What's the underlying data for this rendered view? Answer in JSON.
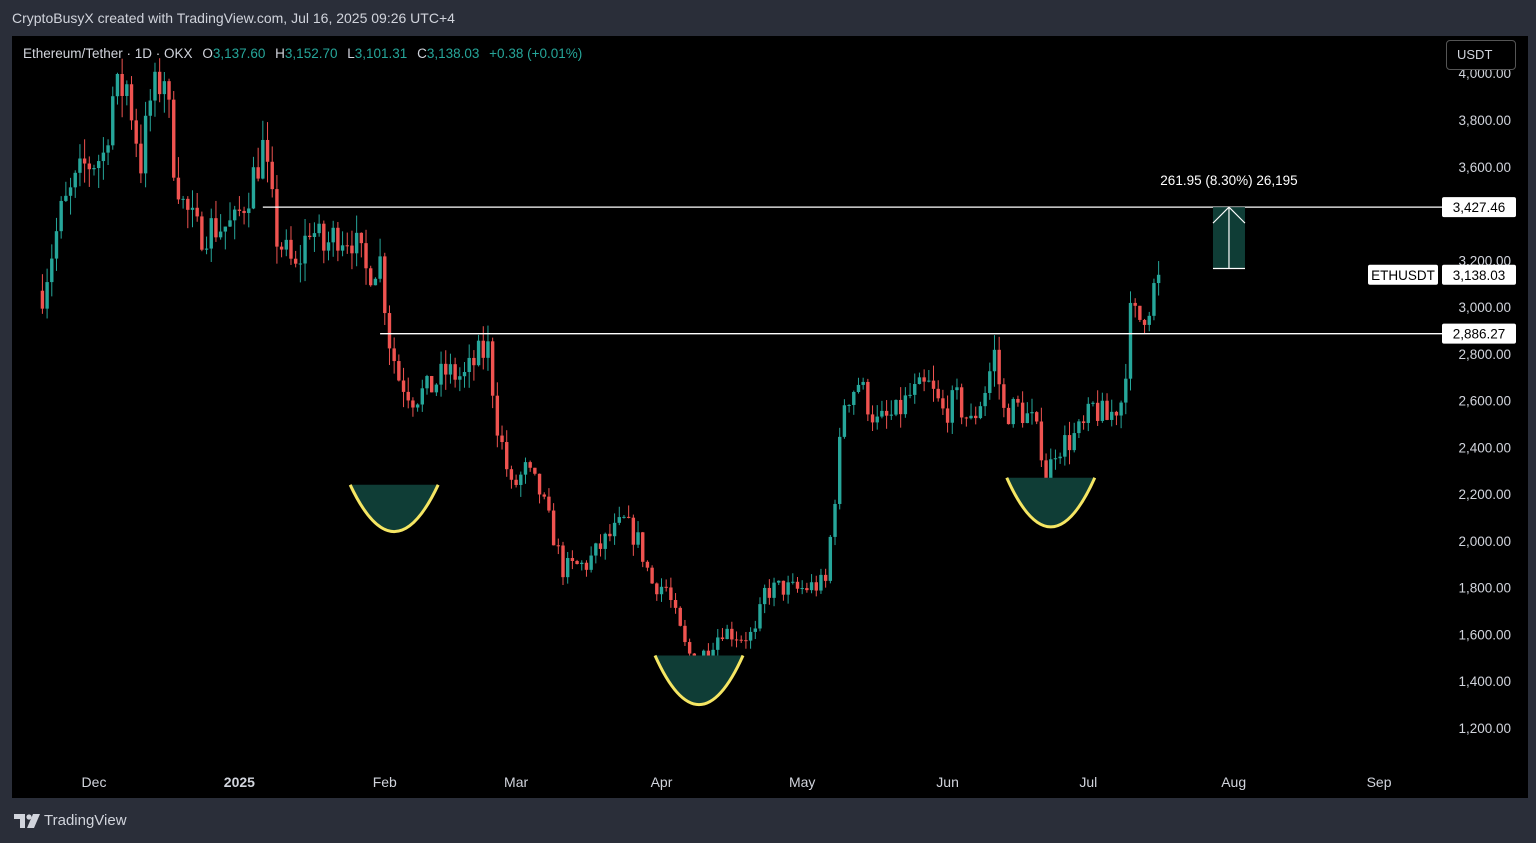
{
  "header": {
    "credit": "CryptoBusyX created with TradingView.com, Jul 16, 2025 09:26 UTC+4"
  },
  "legend": {
    "title": "Ethereum/Tether · 1D · OKX",
    "o_label": "O",
    "o_value": "3,137.60",
    "h_label": "H",
    "h_value": "3,152.70",
    "l_label": "L",
    "l_value": "3,101.31",
    "c_label": "C",
    "c_value": "3,138.03",
    "change": "+0.38 (+0.01%)"
  },
  "currency_button": "USDT",
  "measure_label": "261.95 (8.30%) 26,195",
  "symbol_tag": "ETHUSDT",
  "price_tags": {
    "last": "3,138.03",
    "resistance": "3,427.46",
    "breakout": "2,886.27"
  },
  "footer": {
    "brand": "TradingView"
  },
  "colors": {
    "up": "#26a69a",
    "down": "#ef5350",
    "background": "#000000",
    "frame": "#2a2e39",
    "highlight": "#f5e663",
    "zone": "#0f3d36"
  },
  "chart_data": {
    "type": "candlestick",
    "symbol": "ETHUSDT",
    "interval": "1D",
    "yticks": [
      "4,000.00",
      "3,800.00",
      "3,600.00",
      "3,200.00",
      "3,000.00",
      "2,800.00",
      "2,600.00",
      "2,400.00",
      "2,200.00",
      "2,000.00",
      "1,800.00",
      "1,600.00",
      "1,400.00",
      "1,200.00"
    ],
    "ytick_values": [
      4000,
      3800,
      3600,
      3200,
      3000,
      2800,
      2600,
      2400,
      2200,
      2000,
      1800,
      1600,
      1400,
      1200
    ],
    "xticks": [
      {
        "label": "Dec",
        "date": "2024-12-01",
        "bold": false
      },
      {
        "label": "2025",
        "date": "2025-01-01",
        "bold": true
      },
      {
        "label": "Feb",
        "date": "2025-02-01",
        "bold": false
      },
      {
        "label": "Mar",
        "date": "2025-03-01",
        "bold": false
      },
      {
        "label": "Apr",
        "date": "2025-04-01",
        "bold": false
      },
      {
        "label": "May",
        "date": "2025-05-01",
        "bold": false
      },
      {
        "label": "Jun",
        "date": "2025-06-01",
        "bold": false
      },
      {
        "label": "Jul",
        "date": "2025-07-01",
        "bold": false
      },
      {
        "label": "Aug",
        "date": "2025-08-01",
        "bold": false
      },
      {
        "label": "Sep",
        "date": "2025-09-01",
        "bold": false
      }
    ],
    "start_date": "2024-11-20",
    "end_date": "2025-07-16",
    "close_path": [
      [
        "2024-11-20",
        3070
      ],
      [
        "2024-11-24",
        3400
      ],
      [
        "2024-11-29",
        3600
      ],
      [
        "2024-12-03",
        3650
      ],
      [
        "2024-12-05",
        3900
      ],
      [
        "2024-12-08",
        3950
      ],
      [
        "2024-12-11",
        3620
      ],
      [
        "2024-12-13",
        3880
      ],
      [
        "2024-12-16",
        4000
      ],
      [
        "2024-12-18",
        3630
      ],
      [
        "2024-12-20",
        3440
      ],
      [
        "2024-12-23",
        3320
      ],
      [
        "2024-12-26",
        3340
      ],
      [
        "2024-12-31",
        3350
      ],
      [
        "2025-01-03",
        3500
      ],
      [
        "2025-01-06",
        3680
      ],
      [
        "2025-01-09",
        3300
      ],
      [
        "2025-01-13",
        3150
      ],
      [
        "2025-01-16",
        3350
      ],
      [
        "2025-01-19",
        3250
      ],
      [
        "2025-01-22",
        3320
      ],
      [
        "2025-01-25",
        3300
      ],
      [
        "2025-01-28",
        3150
      ],
      [
        "2025-01-31",
        3200
      ],
      [
        "2025-02-02",
        2860
      ],
      [
        "2025-02-04",
        2700
      ],
      [
        "2025-02-07",
        2620
      ],
      [
        "2025-02-10",
        2640
      ],
      [
        "2025-02-14",
        2720
      ],
      [
        "2025-02-18",
        2700
      ],
      [
        "2025-02-21",
        2790
      ],
      [
        "2025-02-23",
        2820
      ],
      [
        "2025-02-25",
        2500
      ],
      [
        "2025-02-28",
        2220
      ],
      [
        "2025-03-03",
        2300
      ],
      [
        "2025-03-06",
        2210
      ],
      [
        "2025-03-09",
        2020
      ],
      [
        "2025-03-11",
        1880
      ],
      [
        "2025-03-16",
        1900
      ],
      [
        "2025-03-20",
        2000
      ],
      [
        "2025-03-24",
        2080
      ],
      [
        "2025-03-27",
        2000
      ],
      [
        "2025-03-30",
        1820
      ],
      [
        "2025-04-02",
        1800
      ],
      [
        "2025-04-06",
        1550
      ],
      [
        "2025-04-08",
        1480
      ],
      [
        "2025-04-10",
        1520
      ],
      [
        "2025-04-14",
        1620
      ],
      [
        "2025-04-18",
        1590
      ],
      [
        "2025-04-21",
        1600
      ],
      [
        "2025-04-23",
        1780
      ],
      [
        "2025-04-26",
        1800
      ],
      [
        "2025-04-30",
        1790
      ],
      [
        "2025-05-06",
        1820
      ],
      [
        "2025-05-08",
        2200
      ],
      [
        "2025-05-10",
        2600
      ],
      [
        "2025-05-13",
        2680
      ],
      [
        "2025-05-17",
        2500
      ],
      [
        "2025-05-21",
        2540
      ],
      [
        "2025-05-24",
        2620
      ],
      [
        "2025-05-28",
        2660
      ],
      [
        "2025-05-31",
        2550
      ],
      [
        "2025-06-03",
        2600
      ],
      [
        "2025-06-06",
        2500
      ],
      [
        "2025-06-09",
        2650
      ],
      [
        "2025-06-11",
        2800
      ],
      [
        "2025-06-13",
        2550
      ],
      [
        "2025-06-16",
        2570
      ],
      [
        "2025-06-19",
        2510
      ],
      [
        "2025-06-21",
        2400
      ],
      [
        "2025-06-22",
        2250
      ],
      [
        "2025-06-24",
        2400
      ],
      [
        "2025-06-27",
        2430
      ],
      [
        "2025-06-30",
        2480
      ],
      [
        "2025-07-02",
        2570
      ],
      [
        "2025-07-05",
        2520
      ],
      [
        "2025-07-08",
        2600
      ],
      [
        "2025-07-09",
        2760
      ],
      [
        "2025-07-10",
        2960
      ],
      [
        "2025-07-12",
        2950
      ],
      [
        "2025-07-14",
        3020
      ],
      [
        "2025-07-16",
        3138
      ]
    ],
    "levels": [
      {
        "price": 3427.46,
        "from_date": "2025-01-06",
        "label": "3,427.46"
      },
      {
        "price": 2886.27,
        "from_date": "2025-01-31",
        "label": "2,886.27"
      }
    ],
    "last_price": 3138.03,
    "measure": {
      "from_date": "2025-07-31",
      "price_from": 3165,
      "price_to": 3427.46,
      "label": "261.95 (8.30%) 26,195"
    },
    "cup_markers": [
      {
        "date": "2025-02-03",
        "top": 2240,
        "bottom": 2040
      },
      {
        "date": "2025-04-09",
        "top": 1510,
        "bottom": 1300
      },
      {
        "date": "2025-06-23",
        "top": 2270,
        "bottom": 2060
      }
    ],
    "title": "Ethereum/Tether · 1D · OKX",
    "xlabel": "",
    "ylabel": "",
    "grid": false
  }
}
